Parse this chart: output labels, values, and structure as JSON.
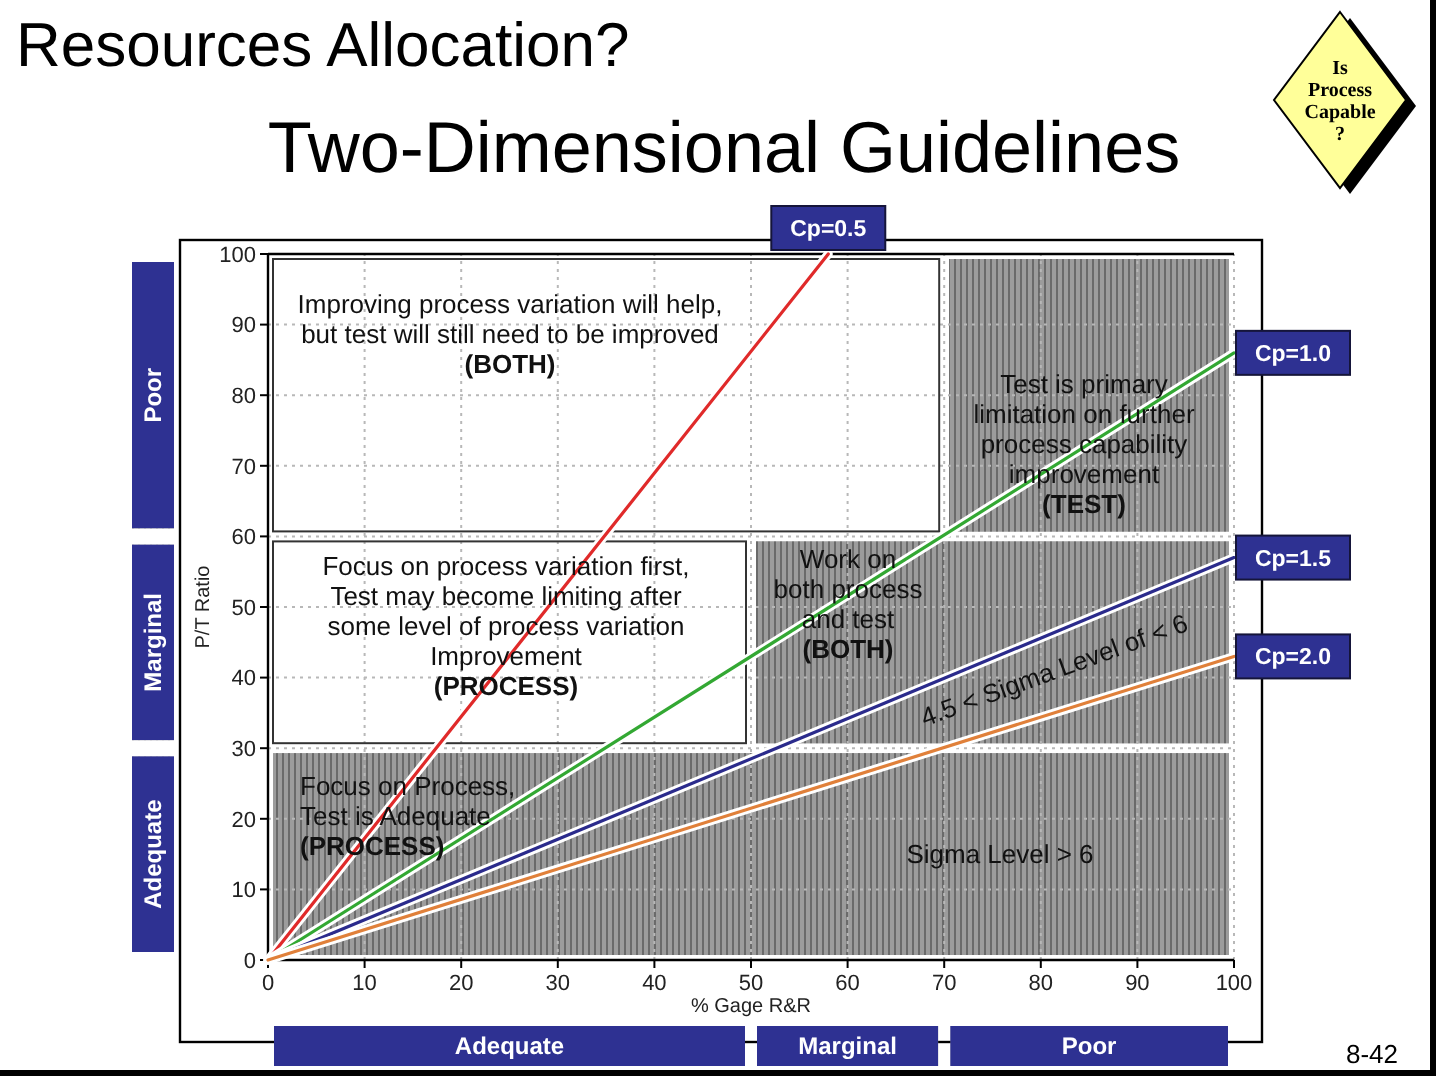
{
  "chart_data": {
    "type": "line",
    "title": "Resources Allocation?",
    "subtitle": "Two-Dimensional Guidelines",
    "xlabel": "% Gage R&R",
    "ylabel": "P/T Ratio",
    "xlim": [
      0,
      100
    ],
    "ylim": [
      0,
      100
    ],
    "xticks": [
      0,
      10,
      20,
      30,
      40,
      50,
      60,
      70,
      80,
      90,
      100
    ],
    "yticks": [
      0,
      10,
      20,
      30,
      40,
      50,
      60,
      70,
      80,
      90,
      100
    ],
    "grid": true,
    "series": [
      {
        "name": "Cp=0.5",
        "color": "#e02a2a",
        "x": [
          0,
          58
        ],
        "values": [
          0,
          100
        ]
      },
      {
        "name": "Cp=1.0",
        "color": "#33a833",
        "x": [
          0,
          100
        ],
        "values": [
          0,
          86
        ]
      },
      {
        "name": "Cp=1.5",
        "color": "#2b2b8c",
        "x": [
          0,
          100
        ],
        "values": [
          0,
          57
        ]
      },
      {
        "name": "Cp=2.0",
        "color": "#e0803a",
        "x": [
          0,
          100
        ],
        "values": [
          0,
          43
        ]
      }
    ],
    "bands": [
      {
        "axis": "x",
        "from": 0,
        "to": 50,
        "label": "Adequate"
      },
      {
        "axis": "x",
        "from": 50,
        "to": 70,
        "label": "Marginal"
      },
      {
        "axis": "x",
        "from": 70,
        "to": 100,
        "label": "Poor"
      },
      {
        "axis": "y",
        "from": 0,
        "to": 30,
        "label": "Adequate"
      },
      {
        "axis": "y",
        "from": 30,
        "to": 60,
        "label": "Marginal"
      },
      {
        "axis": "y",
        "from": 60,
        "to": 100,
        "label": "Poor"
      }
    ],
    "annotations": [
      "Is Process Capable ?",
      "Improving process variation will help,\nbut test will still need to be improved\n(BOTH)",
      "Test is primary\nlimitation on further\nprocess capability\nimprovement\n(TEST)",
      "Focus on process variation first,\nTest may become limiting after\nsome level of process variation\nImprovement\n(PROCESS)",
      "Work on\nboth process\nand test\n(BOTH)",
      "Focus on Process,\nTest is Adequate\n(PROCESS)",
      "4.5 < Sigma Level of < 6",
      "Sigma Level > 6",
      "8-42"
    ]
  }
}
